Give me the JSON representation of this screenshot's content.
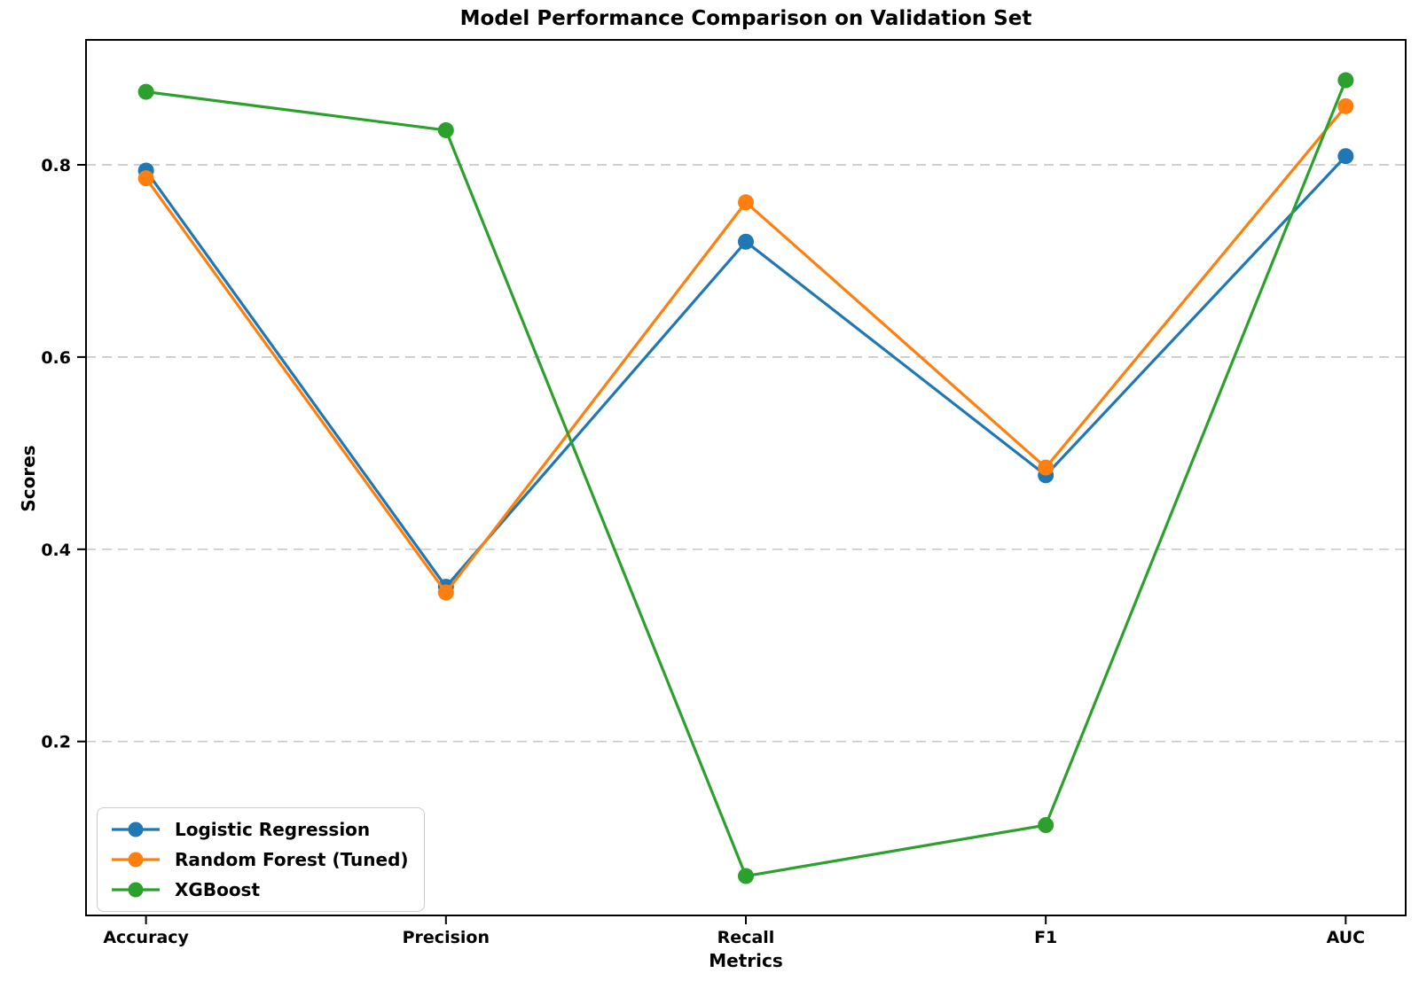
{
  "chart_data": {
    "type": "line",
    "title": "Model Performance Comparison on Validation Set",
    "xlabel": "Metrics",
    "ylabel": "Scores",
    "categories": [
      "Accuracy",
      "Precision",
      "Recall",
      "F1",
      "AUC"
    ],
    "series": [
      {
        "name": "Logistic Regression",
        "color": "#1f77b4",
        "values": [
          0.794,
          0.361,
          0.72,
          0.477,
          0.809
        ]
      },
      {
        "name": "Random Forest (Tuned)",
        "color": "#ff7f0e",
        "values": [
          0.786,
          0.355,
          0.761,
          0.485,
          0.861
        ]
      },
      {
        "name": "XGBoost",
        "color": "#2ca02c",
        "values": [
          0.876,
          0.836,
          0.06,
          0.113,
          0.888
        ]
      }
    ],
    "yticks": [
      0.2,
      0.4,
      0.6,
      0.8
    ],
    "ytick_labels": [
      "0.2",
      "0.4",
      "0.6",
      "0.8"
    ],
    "ylim": [
      0.019,
      0.93
    ],
    "xlim": [
      -0.2,
      4.2
    ],
    "grid": "horizontal-dashed",
    "legend_position": "lower-left",
    "marker": "circle",
    "colors": {
      "grid": "#c9c9c9",
      "spine": "#000000",
      "background": "#ffffff",
      "legend_border": "#cccccc"
    }
  }
}
